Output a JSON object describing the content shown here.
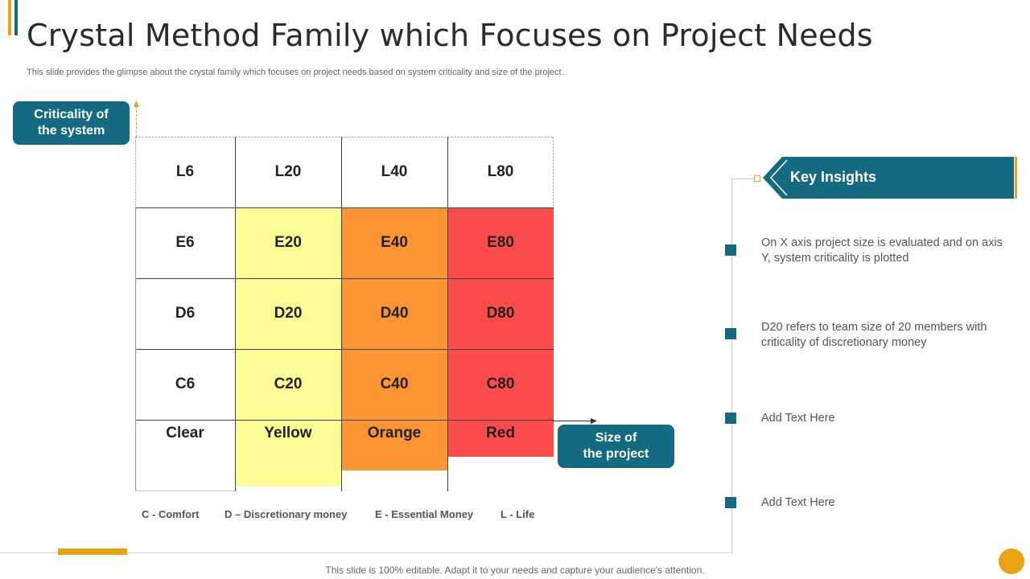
{
  "slide": {
    "title": "Crystal Method Family which Focuses on Project Needs",
    "subtitle": "This slide provides the glimpse about the crystal family which focuses on project needs based on system criticality and size of the project.",
    "footer": "This slide is 100% editable. Adapt it to your needs and capture your audience's attention."
  },
  "axis": {
    "y_label_line1": "Criticality of",
    "y_label_line2": "the system",
    "x_label_line1": "Size of",
    "x_label_line2": "the project"
  },
  "grid": {
    "rows": [
      [
        "L6",
        "L20",
        "L40",
        "L80"
      ],
      [
        "E6",
        "E20",
        "E40",
        "E80"
      ],
      [
        "D6",
        "D20",
        "D40",
        "D80"
      ],
      [
        "C6",
        "C20",
        "C40",
        "C80"
      ]
    ],
    "colors": [
      "Clear",
      "Yellow",
      "Orange",
      "Red"
    ],
    "fills": [
      "#ffffff",
      "#fdfd96",
      "#fb9533",
      "#fb4b4b"
    ]
  },
  "legend": [
    "C - Comfort",
    "D – Discretionary money",
    "E - Essential Money",
    "L - Life"
  ],
  "insights": {
    "title": "Key Insights",
    "items": [
      "On X axis project size is evaluated and on axis Y, system criticality is plotted",
      "D20 refers to team size of 20 members with criticality of discretionary money",
      "Add Text Here",
      "Add Text Here"
    ]
  },
  "colors": {
    "teal": "#146a80",
    "accent": "#e8a317",
    "accent_bar_secondary": "#146a80"
  }
}
